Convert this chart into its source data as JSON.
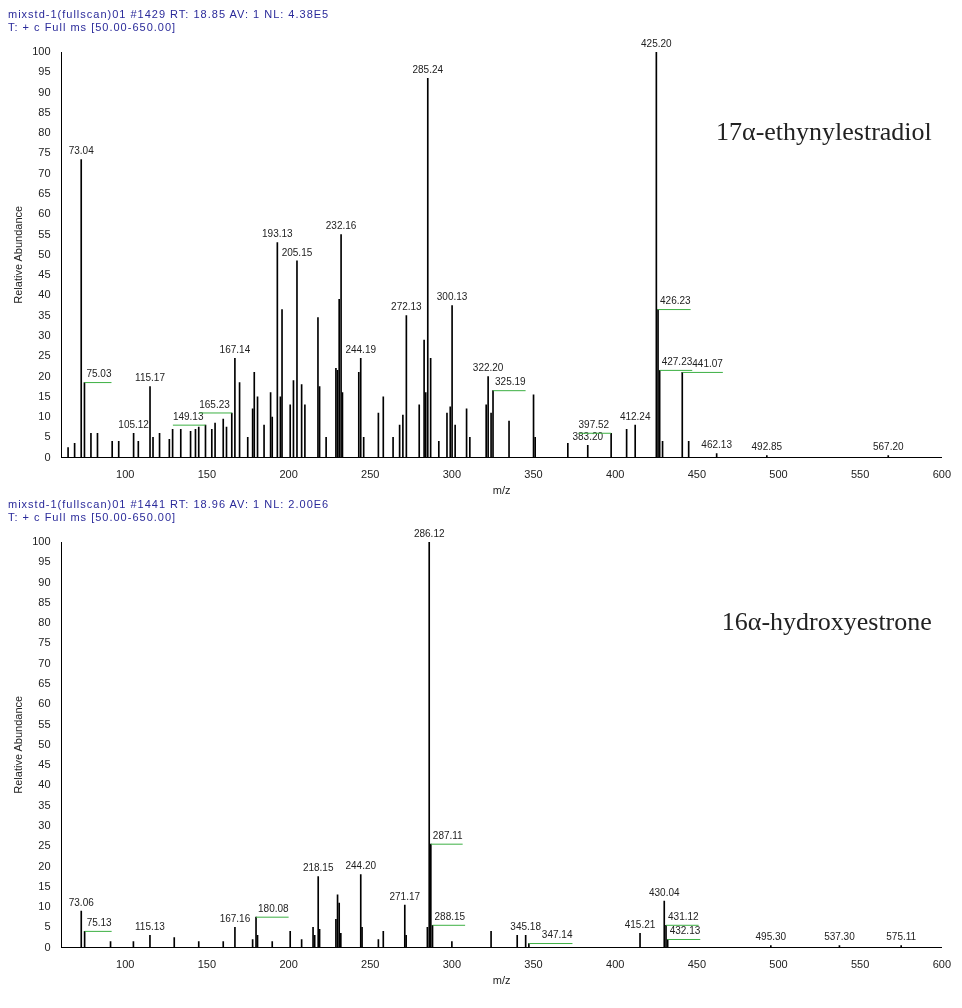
{
  "chart_data": [
    {
      "type": "bar",
      "xlabel": "m/z",
      "ylabel": "Relative Abundance",
      "color": "#000000",
      "xlim": [
        61,
        600
      ],
      "xticks": [
        100,
        150,
        200,
        250,
        300,
        350,
        400,
        450,
        500,
        550,
        600
      ],
      "ylim": [
        0,
        100
      ],
      "yticks": [
        0,
        5,
        10,
        15,
        20,
        25,
        30,
        35,
        40,
        45,
        50,
        55,
        60,
        65,
        70,
        75,
        80,
        85,
        90,
        95,
        100
      ],
      "x": [
        65,
        69,
        73.04,
        75.03,
        79,
        83,
        92,
        96,
        105.12,
        108,
        115.17,
        117,
        121,
        127,
        129,
        134,
        140,
        143,
        145,
        149.13,
        153,
        155,
        160,
        162,
        165.23,
        167.14,
        170,
        175,
        178,
        179,
        181,
        185,
        189,
        190,
        193.13,
        195,
        196,
        201,
        203,
        205.15,
        208,
        210,
        218,
        219,
        223,
        229,
        230,
        231,
        232.16,
        233,
        243,
        244.19,
        246,
        255,
        258,
        264,
        268,
        270,
        272.13,
        280,
        283,
        284,
        285.24,
        287,
        292,
        297,
        299,
        300.13,
        302,
        309,
        311,
        321,
        322.2,
        324,
        325.19,
        335,
        350,
        351,
        371,
        383.2,
        397.52,
        407,
        412.24,
        425.2,
        426.23,
        427.23,
        429,
        441.07,
        445,
        462.13,
        492.85,
        567.2
      ],
      "values": [
        2.5,
        3.5,
        73.5,
        18.5,
        6,
        6,
        4,
        4,
        6,
        4,
        17.5,
        5,
        6,
        4.5,
        7,
        7,
        6.5,
        7,
        7.5,
        8,
        7,
        8.5,
        9.5,
        7.5,
        11,
        24.5,
        18.5,
        5,
        12,
        21,
        15,
        8,
        16,
        10,
        53,
        15,
        36.5,
        13,
        19,
        48.5,
        18,
        13,
        34.5,
        17.5,
        5,
        22,
        21.5,
        39,
        55,
        16,
        21,
        24.5,
        5,
        11,
        15,
        5,
        8,
        10.5,
        35,
        13,
        29,
        16,
        93.5,
        24.5,
        4,
        11,
        12.5,
        37.5,
        8,
        12,
        5,
        13,
        20,
        11,
        16.5,
        9,
        15.5,
        5,
        3.5,
        3,
        6,
        7,
        8,
        100,
        36.5,
        21.5,
        4,
        21,
        4,
        1,
        0.5,
        0.5
      ],
      "annotations": [
        "mixstd-1(fullscan)01 #1429  RT: 18.85  AV: 1  NL: 4.38E5",
        "T: + c Full ms [50.00-650.00]",
        "17α-ethynylestradiol",
        {
          "text": "73.04",
          "x": 73.04,
          "y": 73.5
        },
        {
          "text": "75.03",
          "x": 75.03,
          "y": 18.5
        },
        {
          "text": "105.12",
          "x": 105.12,
          "y": 6
        },
        {
          "text": "115.17",
          "x": 115.17,
          "y": 17.5
        },
        {
          "text": "149.13",
          "x": 149.13,
          "y": 8
        },
        {
          "text": "165.23",
          "x": 165.23,
          "y": 11
        },
        {
          "text": "167.14",
          "x": 167.14,
          "y": 24.5
        },
        {
          "text": "193.13",
          "x": 193.13,
          "y": 53
        },
        {
          "text": "205.15",
          "x": 205.15,
          "y": 48.5
        },
        {
          "text": "232.16",
          "x": 232.16,
          "y": 55
        },
        {
          "text": "244.19",
          "x": 244.19,
          "y": 24.5
        },
        {
          "text": "272.13",
          "x": 272.13,
          "y": 35
        },
        {
          "text": "285.24",
          "x": 285.24,
          "y": 93.5
        },
        {
          "text": "300.13",
          "x": 300.13,
          "y": 37.5
        },
        {
          "text": "322.20",
          "x": 322.2,
          "y": 20
        },
        {
          "text": "325.19",
          "x": 325.19,
          "y": 16.5
        },
        {
          "text": "383.20",
          "x": 383.2,
          "y": 3
        },
        {
          "text": "397.52",
          "x": 397.52,
          "y": 6
        },
        {
          "text": "412.24",
          "x": 412.24,
          "y": 8
        },
        {
          "text": "425.20",
          "x": 425.2,
          "y": 100
        },
        {
          "text": "426.23",
          "x": 426.23,
          "y": 36.5
        },
        {
          "text": "427.23",
          "x": 427.23,
          "y": 21.5
        },
        {
          "text": "441.07",
          "x": 441.07,
          "y": 21
        },
        {
          "text": "462.13",
          "x": 462.13,
          "y": 1
        },
        {
          "text": "492.85",
          "x": 492.85,
          "y": 0.5
        },
        {
          "text": "567.20",
          "x": 567.2,
          "y": 0.5
        }
      ]
    },
    {
      "type": "bar",
      "xlabel": "m/z",
      "ylabel": "Relative Abundance",
      "color": "#000000",
      "xlim": [
        61,
        600
      ],
      "xticks": [
        100,
        150,
        200,
        250,
        300,
        350,
        400,
        450,
        500,
        550,
        600
      ],
      "ylim": [
        0,
        100
      ],
      "yticks": [
        0,
        5,
        10,
        15,
        20,
        25,
        30,
        35,
        40,
        45,
        50,
        55,
        60,
        65,
        70,
        75,
        80,
        85,
        90,
        95,
        100
      ],
      "x": [
        73.06,
        75.13,
        91,
        105,
        115.13,
        130,
        145,
        160,
        167.16,
        178,
        180.08,
        181,
        190,
        201,
        208,
        215,
        216,
        218.15,
        219,
        229,
        230,
        231,
        232,
        244.2,
        245,
        255,
        258,
        271.17,
        272,
        285,
        286.12,
        287.11,
        288.15,
        300,
        324,
        340,
        345.18,
        347.14,
        415.21,
        430.04,
        431.12,
        432.13,
        495.3,
        537.3,
        575.11
      ],
      "values": [
        9,
        4,
        1.5,
        1.5,
        3,
        2.5,
        1.5,
        1.5,
        5,
        2,
        7.5,
        3,
        1.5,
        4,
        2,
        5,
        3,
        17.5,
        4.5,
        7,
        13,
        11,
        3.5,
        18,
        5,
        2,
        4,
        10.5,
        3,
        5,
        100,
        25.5,
        5.5,
        1.5,
        4,
        3,
        3,
        1,
        3.5,
        11.5,
        5.5,
        2,
        0.5,
        0.5,
        0.5
      ],
      "annotations": [
        "mixstd-1(fullscan)01 #1441  RT: 18.96  AV: 1  NL: 2.00E6",
        "T: + c Full ms [50.00-650.00]",
        "16α-hydroxyestrone",
        {
          "text": "73.06",
          "x": 73.06,
          "y": 9
        },
        {
          "text": "75.13",
          "x": 75.13,
          "y": 4
        },
        {
          "text": "115.13",
          "x": 115.13,
          "y": 3
        },
        {
          "text": "167.16",
          "x": 167.16,
          "y": 5
        },
        {
          "text": "180.08",
          "x": 180.08,
          "y": 7.5
        },
        {
          "text": "218.15",
          "x": 218.15,
          "y": 17.5
        },
        {
          "text": "244.20",
          "x": 244.2,
          "y": 18
        },
        {
          "text": "271.17",
          "x": 271.17,
          "y": 10.5
        },
        {
          "text": "286.12",
          "x": 286.12,
          "y": 100
        },
        {
          "text": "287.11",
          "x": 287.11,
          "y": 25.5
        },
        {
          "text": "288.15",
          "x": 288.15,
          "y": 5.5
        },
        {
          "text": "345.18",
          "x": 345.18,
          "y": 3
        },
        {
          "text": "347.14",
          "x": 347.14,
          "y": 1
        },
        {
          "text": "415.21",
          "x": 415.21,
          "y": 3.5
        },
        {
          "text": "430.04",
          "x": 430.04,
          "y": 11.5
        },
        {
          "text": "431.12",
          "x": 431.12,
          "y": 5.5
        },
        {
          "text": "432.13",
          "x": 432.13,
          "y": 2
        },
        {
          "text": "495.30",
          "x": 495.3,
          "y": 0.5
        },
        {
          "text": "537.30",
          "x": 537.3,
          "y": 0.5
        },
        {
          "text": "575.11",
          "x": 575.11,
          "y": 0.5
        }
      ]
    }
  ]
}
